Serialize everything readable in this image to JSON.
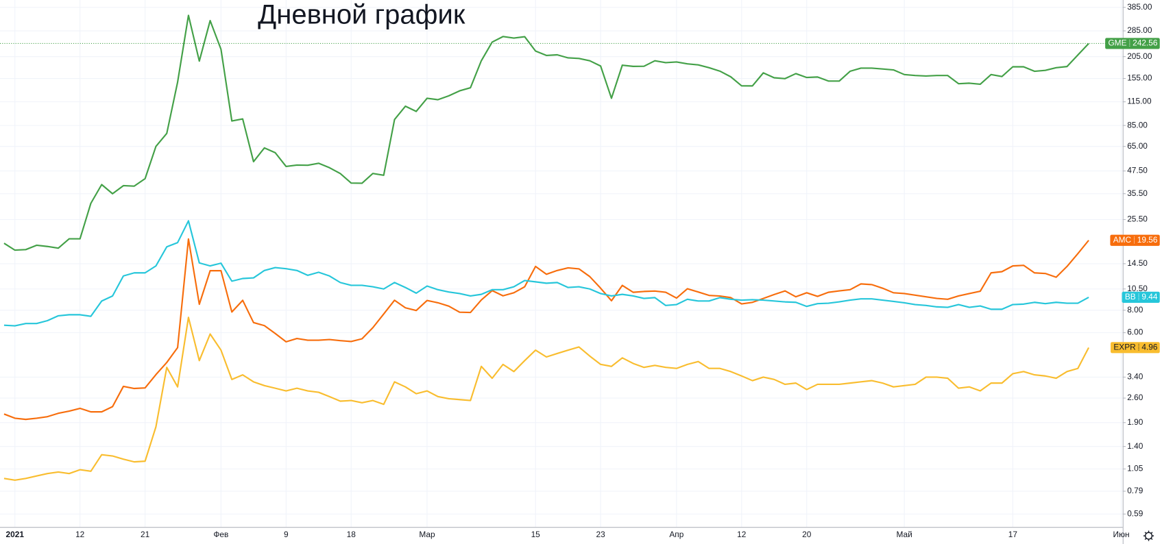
{
  "chart_data": {
    "type": "line",
    "title": "Дневной график",
    "log_scale": true,
    "grid": true,
    "categories": [
      null,
      "2021",
      null,
      null,
      null,
      null,
      null,
      "12",
      null,
      null,
      null,
      null,
      null,
      "21",
      null,
      null,
      null,
      null,
      null,
      null,
      "Фев",
      null,
      null,
      null,
      null,
      null,
      "9",
      null,
      null,
      null,
      null,
      null,
      "18",
      null,
      null,
      null,
      null,
      null,
      null,
      "Мар",
      null,
      null,
      null,
      null,
      null,
      null,
      null,
      null,
      null,
      "15",
      null,
      null,
      null,
      null,
      null,
      "23",
      null,
      null,
      null,
      null,
      null,
      null,
      "Апр",
      null,
      null,
      null,
      null,
      null,
      "12",
      null,
      null,
      null,
      null,
      null,
      "20",
      null,
      null,
      null,
      null,
      null,
      null,
      null,
      null,
      "Май",
      null,
      null,
      null,
      null,
      null,
      null,
      null,
      null,
      null,
      "17",
      null,
      null,
      null,
      null,
      null,
      null,
      null,
      null,
      null,
      "Июн"
    ],
    "ylim": [
      0.5,
      423
    ],
    "yticks": [
      {
        "value": 385,
        "label": "385.00"
      },
      {
        "value": 285,
        "label": "285.00"
      },
      {
        "value": 205,
        "label": "205.00"
      },
      {
        "value": 155,
        "label": "155.00"
      },
      {
        "value": 115,
        "label": "115.00"
      },
      {
        "value": 85,
        "label": "85.00"
      },
      {
        "value": 65,
        "label": "65.00"
      },
      {
        "value": 47.5,
        "label": "47.50"
      },
      {
        "value": 35.5,
        "label": "35.50"
      },
      {
        "value": 25.5,
        "label": "25.50"
      },
      {
        "value": 14.5,
        "label": "14.50"
      },
      {
        "value": 10.5,
        "label": "10.50"
      },
      {
        "value": 8,
        "label": "8.00"
      },
      {
        "value": 6,
        "label": "6.00"
      },
      {
        "value": 3.4,
        "label": "3.40"
      },
      {
        "value": 2.6,
        "label": "2.60"
      },
      {
        "value": 1.9,
        "label": "1.90"
      },
      {
        "value": 1.4,
        "label": "1.40"
      },
      {
        "value": 1.05,
        "label": "1.05"
      },
      {
        "value": 0.79,
        "label": "0.79"
      },
      {
        "value": 0.59,
        "label": "0.59"
      }
    ],
    "series": [
      {
        "name": "GME",
        "color": "#43a047",
        "price_line": true,
        "values": [
          18.84,
          17.25,
          17.37,
          18.36,
          18.08,
          17.69,
          19.94,
          19.95,
          31.4,
          39.91,
          35.5,
          39.36,
          39.12,
          43.03,
          65.01,
          76.79,
          147.98,
          347.51,
          193.6,
          325,
          225,
          90,
          92.41,
          53.5,
          63.77,
          60,
          50.31,
          51.2,
          51.1,
          52.4,
          49.51,
          45.94,
          40.69,
          40.59,
          46,
          44.97,
          91.71,
          108.73,
          101.74,
          120.4,
          118.18,
          124.18,
          132.35,
          137.74,
          194.5,
          246.9,
          265,
          260,
          264.5,
          220.14,
          208.17,
          209.81,
          201.75,
          200.27,
          194.49,
          181.75,
          120.34,
          183.75,
          181,
          181.3,
          194.46,
          189.82,
          191.45,
          186.95,
          184.5,
          177.97,
          170.26,
          158.36,
          141.09,
          140.99,
          166.53,
          156.44,
          154.69,
          165,
          157,
          158,
          150,
          150,
          170,
          177,
          177,
          175,
          173,
          163,
          161,
          160,
          161,
          161,
          145,
          146,
          144,
          163,
          159,
          180,
          180,
          170,
          172,
          178,
          180.6,
          209.43,
          242.56,
          null,
          null,
          null
        ]
      },
      {
        "name": "AMC",
        "color": "#f76d0c",
        "values": [
          2.12,
          2.01,
          1.98,
          2.01,
          2.05,
          2.14,
          2.2,
          2.28,
          2.18,
          2.18,
          2.33,
          3.02,
          2.94,
          2.96,
          3.51,
          4.1,
          4.96,
          19.9,
          8.63,
          13.26,
          13.26,
          7.82,
          9.08,
          6.83,
          6.57,
          5.94,
          5.34,
          5.57,
          5.45,
          5.45,
          5.5,
          5.42,
          5.36,
          5.55,
          6.4,
          7.62,
          9.09,
          8.25,
          7.97,
          9.06,
          8.8,
          8.43,
          7.8,
          7.77,
          9.12,
          10.28,
          9.62,
          10,
          10.8,
          14.01,
          12.67,
          13.3,
          13.75,
          13.58,
          12.3,
          10.6,
          9.03,
          10.99,
          10.06,
          10.17,
          10.22,
          10.07,
          9.34,
          10.53,
          10.1,
          9.67,
          9.59,
          9.4,
          8.67,
          8.85,
          9.3,
          9.78,
          10.24,
          9.5,
          10,
          9.55,
          10.06,
          10.24,
          10.4,
          11.2,
          11.1,
          10.6,
          10,
          9.9,
          9.7,
          9.5,
          9.3,
          9.2,
          9.6,
          9.9,
          10.2,
          12.9,
          13.1,
          14.1,
          14.2,
          12.9,
          12.8,
          12.2,
          14,
          16.5,
          19.56,
          null,
          null,
          null
        ]
      },
      {
        "name": "BB",
        "color": "#26c6da",
        "values": [
          6.6,
          6.55,
          6.75,
          6.75,
          7,
          7.45,
          7.55,
          7.55,
          7.4,
          9,
          9.6,
          12.4,
          12.9,
          12.9,
          14.1,
          18,
          19,
          25.1,
          14.65,
          14.1,
          14.6,
          11.6,
          12,
          12.1,
          13.3,
          13.8,
          13.6,
          13.3,
          12.5,
          13,
          12.4,
          11.4,
          11,
          11,
          10.8,
          10.5,
          11.4,
          10.7,
          9.95,
          10.9,
          10.4,
          10.1,
          9.9,
          9.6,
          9.8,
          10.4,
          10.4,
          10.8,
          11.7,
          11.5,
          11.3,
          11.4,
          10.7,
          10.8,
          10.5,
          9.9,
          9.6,
          9.8,
          9.6,
          9.3,
          9.4,
          8.5,
          8.6,
          9.2,
          9,
          9,
          9.4,
          9.2,
          9.1,
          9.15,
          9.1,
          9,
          8.9,
          8.85,
          8.4,
          8.7,
          8.75,
          8.9,
          9.1,
          9.25,
          9.25,
          9.1,
          8.95,
          8.8,
          8.6,
          8.5,
          8.35,
          8.3,
          8.6,
          8.3,
          8.45,
          8.1,
          8.1,
          8.6,
          8.65,
          8.85,
          8.7,
          8.85,
          8.75,
          8.75,
          9.44,
          null,
          null,
          null
        ]
      },
      {
        "name": "EXPR",
        "color": "#f9bd2f",
        "values": [
          0.93,
          0.91,
          0.93,
          0.96,
          0.99,
          1.01,
          0.99,
          1.04,
          1.02,
          1.26,
          1.24,
          1.19,
          1.15,
          1.16,
          1.8,
          3.85,
          3,
          7.3,
          4.2,
          5.9,
          4.8,
          3.3,
          3.5,
          3.2,
          3.05,
          2.95,
          2.85,
          2.95,
          2.85,
          2.8,
          2.65,
          2.5,
          2.52,
          2.45,
          2.52,
          2.4,
          3.2,
          3,
          2.75,
          2.85,
          2.65,
          2.58,
          2.55,
          2.52,
          3.9,
          3.35,
          4,
          3.65,
          4.2,
          4.8,
          4.4,
          4.6,
          4.8,
          5,
          4.45,
          4,
          3.9,
          4.35,
          4.05,
          3.85,
          3.95,
          3.85,
          3.8,
          4,
          4.15,
          3.8,
          3.8,
          3.65,
          3.45,
          3.25,
          3.4,
          3.3,
          3.1,
          3.15,
          2.9,
          3.1,
          3.1,
          3.1,
          3.15,
          3.2,
          3.25,
          3.15,
          3,
          3.05,
          3.1,
          3.4,
          3.4,
          3.35,
          2.95,
          3,
          2.85,
          3.15,
          3.15,
          3.55,
          3.65,
          3.5,
          3.45,
          3.35,
          3.65,
          3.8,
          4.96,
          null,
          null,
          null
        ]
      }
    ]
  }
}
